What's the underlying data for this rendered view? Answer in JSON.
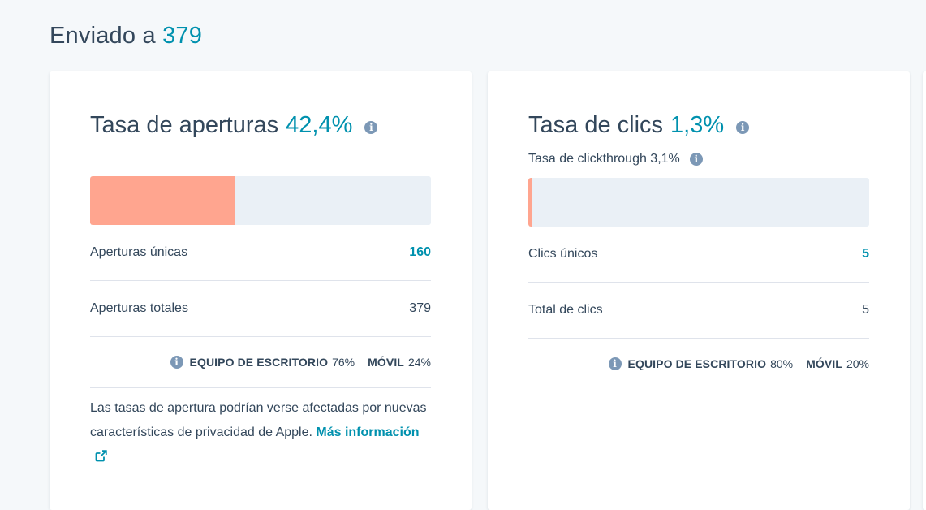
{
  "header": {
    "sent_label": "Enviado a",
    "sent_count": "379"
  },
  "open_card": {
    "title": "Tasa de aperturas",
    "rate": "42,4%",
    "bar_fill_fraction": 0.424,
    "bar_color": "#ffa58f",
    "rows": [
      {
        "label": "Aperturas únicas",
        "value": "160"
      },
      {
        "label": "Aperturas totales",
        "value": "379"
      }
    ],
    "devices": {
      "desktop_label": "EQUIPO DE ESCRITORIO",
      "desktop_pct": "76%",
      "mobile_label": "MÓVIL",
      "mobile_pct": "24%"
    },
    "note": {
      "text": "Las tasas de apertura podrían verse afectadas por nuevas características de privacidad de Apple.",
      "link_text": "Más información",
      "link_icon": "external-link-icon"
    }
  },
  "click_card": {
    "title": "Tasa de clics",
    "rate": "1,3%",
    "subtitle": "Tasa de clickthrough 3,1%",
    "bar_fill_fraction": 0.013,
    "bar_color": "#ffa58f",
    "rows": [
      {
        "label": "Clics únicos",
        "value": "5"
      },
      {
        "label": "Total de clics",
        "value": "5"
      }
    ],
    "devices": {
      "desktop_label": "EQUIPO DE ESCRITORIO",
      "desktop_pct": "80%",
      "mobile_label": "MÓVIL",
      "mobile_pct": "20%"
    }
  },
  "colors": {
    "accent": "#0091ae",
    "text": "#33475b",
    "info_icon": "#7c98b6",
    "bar_track": "#eaf0f6",
    "background": "#f5f8fa"
  },
  "icons": {
    "info": "info-icon",
    "external": "external-link-icon"
  }
}
